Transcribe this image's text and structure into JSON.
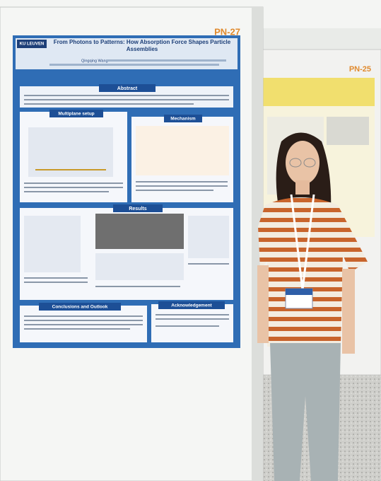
{
  "board_labels": [
    "PN-27",
    "PN-25"
  ],
  "poster": {
    "logo": "KU LEUVEN",
    "title": "From Photons to Patterns: How Absorption Force Shapes Particle Assemblies",
    "author": "Qingqing Wang",
    "sections": [
      "Abstract",
      "Multiplane setup",
      "Mechanism",
      "Results",
      "Conclusions and Outlook",
      "Acknowledgement"
    ]
  }
}
